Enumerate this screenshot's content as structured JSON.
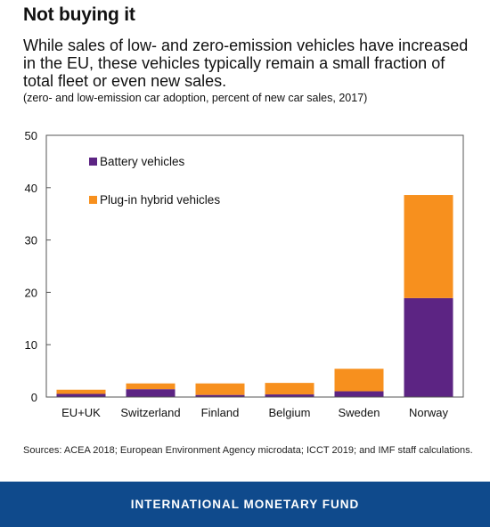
{
  "title": "Not buying it",
  "subtitle": "While sales of low- and zero-emission vehicles have increased in the EU, these vehicles typically remain a small fraction of total fleet or even new sales.",
  "note": "(zero- and low-emission car adoption, percent of new car sales, 2017)",
  "source": "Sources: ACEA 2018; European Environment Agency microdata; ICCT 2019; and IMF staff calculations.",
  "footer": "INTERNATIONAL MONETARY FUND",
  "chart_data": {
    "type": "bar",
    "stacked": true,
    "categories": [
      "EU+UK",
      "Switzerland",
      "Finland",
      "Belgium",
      "Sweden",
      "Norway"
    ],
    "series": [
      {
        "name": "Battery vehicles",
        "color": "#5c2483",
        "values": [
          0.6,
          1.5,
          0.4,
          0.5,
          1.1,
          18.9
        ]
      },
      {
        "name": "Plug-in hybrid vehicles",
        "color": "#f7901e",
        "values": [
          0.8,
          1.1,
          2.2,
          2.2,
          4.3,
          19.7
        ]
      }
    ],
    "ylim": [
      0,
      50
    ],
    "yticks": [
      0,
      10,
      20,
      30,
      40,
      50
    ],
    "grid": false,
    "legend_position": "top-left"
  }
}
